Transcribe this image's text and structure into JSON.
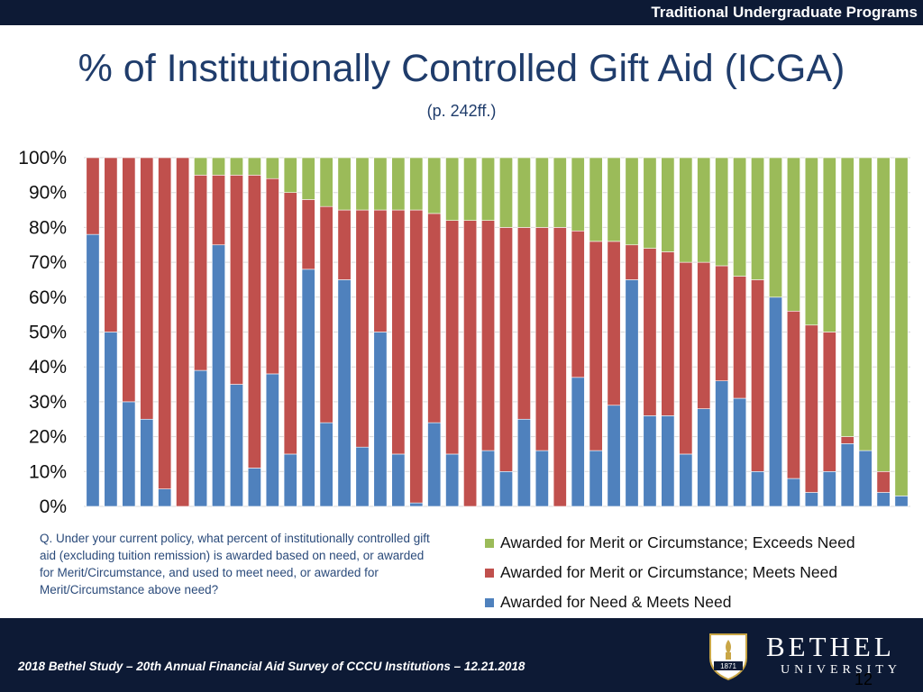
{
  "header": {
    "program": "Traditional Undergraduate Programs"
  },
  "title": "% of Institutionally Controlled Gift Aid (ICGA)",
  "subtitle": "(p. 242ff.)",
  "question": "Q. Under your current policy, what percent of institutionally controlled gift aid (excluding tuition remission) is awarded based on need, or awarded for Merit/Circumstance, and used to meet need, or awarded for Merit/Circumstance above need?",
  "colors": {
    "exceeds": "#9bbb59",
    "meets": "#c0504d",
    "need": "#4f81bd",
    "header_bg": "#0d1a35"
  },
  "chart_data": {
    "type": "bar",
    "stacked": true,
    "percent_scale": true,
    "ylim": [
      0,
      100
    ],
    "yticks": [
      "0%",
      "10%",
      "20%",
      "30%",
      "40%",
      "50%",
      "60%",
      "70%",
      "80%",
      "90%",
      "100%"
    ],
    "xlabel": "",
    "ylabel": "",
    "legend_position": "bottom-right",
    "series": [
      {
        "name": "Awarded for Need & Meets Need",
        "values": [
          78,
          50,
          30,
          25,
          5,
          0,
          39,
          75,
          35,
          11,
          38,
          15,
          68,
          24,
          65,
          17,
          50,
          15,
          1,
          24,
          15,
          0,
          16,
          10,
          25,
          16,
          0,
          37,
          16,
          29,
          65,
          26,
          26,
          15,
          28,
          36,
          31,
          10,
          60,
          8,
          4,
          10,
          18,
          16,
          4,
          3
        ]
      },
      {
        "name": "Awarded for Merit or Circumstance; Meets Need",
        "values": [
          22,
          50,
          70,
          75,
          95,
          100,
          56,
          20,
          60,
          84,
          56,
          75,
          20,
          62,
          20,
          68,
          35,
          70,
          84,
          60,
          67,
          82,
          66,
          70,
          55,
          64,
          80,
          42,
          60,
          47,
          10,
          48,
          47,
          55,
          42,
          33,
          35,
          55,
          0,
          48,
          48,
          40,
          2,
          0,
          6,
          0
        ]
      },
      {
        "name": "Awarded for Merit or Circumstance; Exceeds Need",
        "values": [
          0,
          0,
          0,
          0,
          0,
          0,
          5,
          5,
          5,
          5,
          6,
          10,
          12,
          14,
          15,
          15,
          15,
          15,
          15,
          16,
          18,
          18,
          18,
          20,
          20,
          20,
          20,
          21,
          24,
          24,
          25,
          26,
          27,
          30,
          30,
          31,
          34,
          35,
          40,
          44,
          48,
          50,
          80,
          84,
          90,
          97
        ]
      }
    ]
  },
  "legend": [
    {
      "label": "Awarded for Merit or Circumstance; Exceeds Need",
      "color": "#9bbb59"
    },
    {
      "label": "Awarded for Merit or Circumstance; Meets Need",
      "color": "#c0504d"
    },
    {
      "label": "Awarded for Need & Meets Need",
      "color": "#4f81bd"
    }
  ],
  "footer": {
    "citation": "2018 Bethel Study – 20th Annual Financial Aid Survey of CCCU Institutions – 12.21.2018",
    "brand_name": "BETHEL",
    "brand_sub": "UNIVERSITY",
    "logo_year": "1871",
    "page_number": "12"
  }
}
